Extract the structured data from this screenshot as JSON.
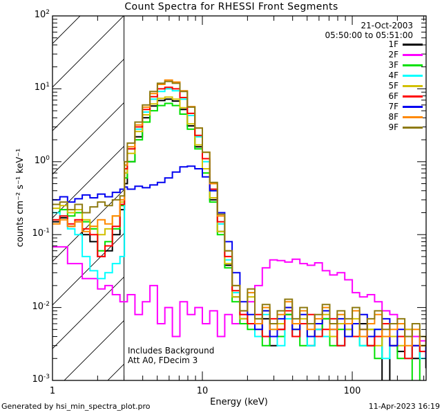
{
  "header": {
    "title": "Count Spectra for RHESSI Front Segments"
  },
  "observation": {
    "date": "21-Oct-2003",
    "time_range": "05:50:00 to 05:51:00"
  },
  "plot_annotations": {
    "background_note": "Includes Background",
    "attenuator_note": "Att A0, FDecim 3"
  },
  "footer": {
    "generated_by": "Generated by hsi_min_spectra_plot.pro",
    "timestamp": "11-Apr-2023 16:19"
  },
  "axes": {
    "xlabel": "Energy (keV)",
    "ylabel": "counts cm⁻² s⁻¹ keV⁻¹",
    "x_ticks": [
      1,
      10,
      100
    ],
    "y_tick_exponents": [
      2,
      1,
      0,
      -1,
      -2,
      -3
    ]
  },
  "chart_data": {
    "type": "line",
    "title": "Count Spectra for RHESSI Front Segments",
    "xlabel": "Energy (keV)",
    "ylabel": "counts cm-2 s-1 keV-1",
    "x_scale": "log",
    "y_scale": "log",
    "xlim": [
      1,
      311
    ],
    "ylim": [
      0.001,
      100
    ],
    "grid": false,
    "legend_position": "top-right",
    "line_style": "histogram-steps",
    "hatched_region": {
      "x_min": 1,
      "x_max": 3,
      "style": "diagonal-hatch"
    },
    "x": [
      1.0,
      1.12,
      1.26,
      1.41,
      1.58,
      1.78,
      2.0,
      2.24,
      2.51,
      2.82,
      3.02,
      3.16,
      3.55,
      3.98,
      4.47,
      5.01,
      5.62,
      6.31,
      7.08,
      7.94,
      8.91,
      10.0,
      11.2,
      12.6,
      14.1,
      15.8,
      17.8,
      20.0,
      22.4,
      25.1,
      28.2,
      31.6,
      35.5,
      39.8,
      44.7,
      50.1,
      56.2,
      63.1,
      70.8,
      79.4,
      89.1,
      100,
      112,
      126,
      141,
      158,
      178,
      200,
      224,
      251,
      282,
      310
    ],
    "series": [
      {
        "name": "1F",
        "color": "#000000",
        "values": [
          0.15,
          0.17,
          0.13,
          0.15,
          0.1,
          0.08,
          0.05,
          0.06,
          0.1,
          0.22,
          0.5,
          1.0,
          2.2,
          4.0,
          5.8,
          6.9,
          7.2,
          6.8,
          5.2,
          3.1,
          1.6,
          0.8,
          0.3,
          0.11,
          0.038,
          0.014,
          0.007,
          0.006,
          0.004,
          0.007,
          0.003,
          0.005,
          0.008,
          0.004,
          0.006,
          0.003,
          0.005,
          0.007,
          0.004,
          0.003,
          0.005,
          0.004,
          0.006,
          0.003,
          0.004,
          0.0008,
          0.003,
          0.0025,
          0.004,
          0.002,
          0.003,
          0.0015
        ]
      },
      {
        "name": "2F",
        "color": "#ff00ff",
        "values": [
          0.068,
          0.068,
          0.04,
          0.04,
          0.025,
          0.025,
          0.018,
          0.02,
          0.015,
          0.012,
          0.012,
          0.015,
          0.008,
          0.012,
          0.02,
          0.006,
          0.01,
          0.004,
          0.012,
          0.008,
          0.01,
          0.006,
          0.009,
          0.004,
          0.008,
          0.006,
          0.008,
          0.012,
          0.02,
          0.035,
          0.045,
          0.044,
          0.042,
          0.046,
          0.04,
          0.038,
          0.041,
          0.032,
          0.028,
          0.03,
          0.024,
          0.016,
          0.014,
          0.015,
          0.012,
          0.009,
          0.008,
          0.006,
          0.005,
          0.004,
          0.0035,
          0.003
        ]
      },
      {
        "name": "3F",
        "color": "#00e100",
        "values": [
          0.2,
          0.22,
          0.18,
          0.2,
          0.15,
          0.12,
          0.06,
          0.08,
          0.12,
          0.25,
          0.6,
          1.0,
          2.0,
          3.5,
          5.0,
          5.9,
          6.3,
          5.9,
          4.5,
          2.8,
          1.5,
          0.7,
          0.28,
          0.1,
          0.035,
          0.012,
          0.006,
          0.005,
          0.007,
          0.003,
          0.006,
          0.004,
          0.008,
          0.005,
          0.003,
          0.006,
          0.004,
          0.007,
          0.003,
          0.005,
          0.004,
          0.006,
          0.003,
          0.005,
          0.002,
          0.004,
          0.003,
          0.002,
          0.004,
          0.0008,
          0.003,
          0.002
        ]
      },
      {
        "name": "4F",
        "color": "#00ffff",
        "values": [
          0.2,
          0.18,
          0.12,
          0.1,
          0.05,
          0.032,
          0.025,
          0.03,
          0.04,
          0.05,
          0.9,
          1.5,
          2.8,
          4.8,
          7.2,
          9.2,
          10.0,
          9.4,
          7.2,
          4.3,
          2.2,
          1.0,
          0.4,
          0.14,
          0.045,
          0.016,
          0.007,
          0.016,
          0.004,
          0.008,
          0.005,
          0.003,
          0.007,
          0.004,
          0.006,
          0.003,
          0.005,
          0.004,
          0.007,
          0.003,
          0.005,
          0.006,
          0.003,
          0.004,
          0.005,
          0.002,
          0.003,
          0.004,
          0.002,
          0.003,
          0.002,
          0.0025
        ]
      },
      {
        "name": "5F",
        "color": "#d2c000",
        "values": [
          0.23,
          0.25,
          0.2,
          0.22,
          0.16,
          0.13,
          0.1,
          0.12,
          0.18,
          0.28,
          0.7,
          1.3,
          2.6,
          4.4,
          6.2,
          7.4,
          7.7,
          7.2,
          5.5,
          3.3,
          1.7,
          0.8,
          0.32,
          0.11,
          0.04,
          0.014,
          0.007,
          0.014,
          0.005,
          0.009,
          0.004,
          0.006,
          0.01,
          0.005,
          0.007,
          0.004,
          0.006,
          0.008,
          0.004,
          0.006,
          0.005,
          0.007,
          0.004,
          0.005,
          0.003,
          0.006,
          0.004,
          0.003,
          0.005,
          0.003,
          0.004,
          0.002
        ]
      },
      {
        "name": "6F",
        "color": "#ff0000",
        "values": [
          0.16,
          0.18,
          0.14,
          0.16,
          0.12,
          0.1,
          0.05,
          0.07,
          0.13,
          0.26,
          0.8,
          1.5,
          3.0,
          5.2,
          7.8,
          10.0,
          10.5,
          10.0,
          7.6,
          4.6,
          2.3,
          1.1,
          0.42,
          0.15,
          0.05,
          0.017,
          0.008,
          0.006,
          0.008,
          0.004,
          0.007,
          0.005,
          0.009,
          0.004,
          0.006,
          0.008,
          0.004,
          0.005,
          0.007,
          0.003,
          0.006,
          0.004,
          0.005,
          0.003,
          0.004,
          0.006,
          0.003,
          0.004,
          0.002,
          0.003,
          0.0025,
          0.002
        ]
      },
      {
        "name": "7F",
        "color": "#0000f0",
        "values": [
          0.3,
          0.33,
          0.28,
          0.31,
          0.35,
          0.32,
          0.36,
          0.33,
          0.38,
          0.42,
          0.45,
          0.42,
          0.46,
          0.44,
          0.48,
          0.52,
          0.6,
          0.72,
          0.85,
          0.87,
          0.8,
          0.62,
          0.4,
          0.2,
          0.08,
          0.03,
          0.012,
          0.008,
          0.005,
          0.009,
          0.004,
          0.007,
          0.01,
          0.005,
          0.008,
          0.004,
          0.006,
          0.009,
          0.005,
          0.007,
          0.004,
          0.006,
          0.008,
          0.004,
          0.005,
          0.007,
          0.003,
          0.005,
          0.004,
          0.003,
          0.004,
          0.002
        ]
      },
      {
        "name": "8F",
        "color": "#ff8800",
        "values": [
          0.14,
          0.16,
          0.13,
          0.15,
          0.11,
          0.13,
          0.16,
          0.14,
          0.18,
          0.3,
          0.9,
          1.6,
          3.2,
          5.6,
          8.6,
          11.5,
          13.2,
          12.4,
          9.4,
          5.7,
          2.9,
          1.35,
          0.5,
          0.18,
          0.06,
          0.02,
          0.009,
          0.016,
          0.006,
          0.01,
          0.005,
          0.008,
          0.012,
          0.006,
          0.009,
          0.005,
          0.007,
          0.01,
          0.005,
          0.008,
          0.006,
          0.009,
          0.004,
          0.006,
          0.008,
          0.004,
          0.005,
          0.006,
          0.003,
          0.005,
          0.003,
          0.004
        ]
      },
      {
        "name": "9F",
        "color": "#8e7a10",
        "values": [
          0.26,
          0.28,
          0.22,
          0.26,
          0.2,
          0.24,
          0.28,
          0.25,
          0.3,
          0.34,
          1.0,
          1.8,
          3.5,
          6.0,
          9.2,
          11.9,
          12.6,
          11.9,
          9.2,
          5.6,
          2.9,
          1.35,
          0.52,
          0.19,
          0.06,
          0.02,
          0.009,
          0.018,
          0.007,
          0.011,
          0.006,
          0.009,
          0.013,
          0.007,
          0.01,
          0.006,
          0.008,
          0.011,
          0.006,
          0.009,
          0.007,
          0.01,
          0.005,
          0.007,
          0.009,
          0.005,
          0.006,
          0.007,
          0.004,
          0.006,
          0.004,
          0.003
        ]
      }
    ]
  }
}
